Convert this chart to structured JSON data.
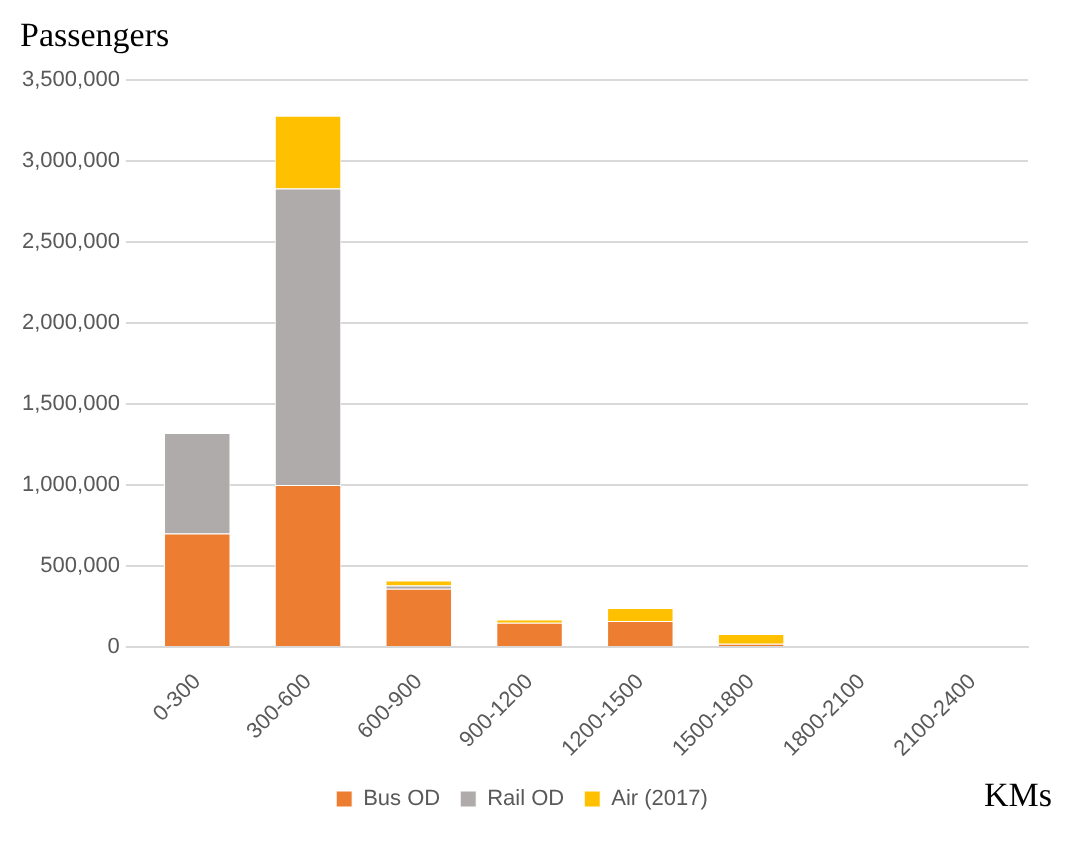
{
  "chart_data": {
    "type": "bar",
    "stacked": true,
    "ylabel": "Passengers",
    "xlabel": "KMs",
    "categories": [
      "0-300",
      "300-600",
      "600-900",
      "900-1200",
      "1200-1500",
      "1500-1800",
      "1800-2100",
      "2100-2400"
    ],
    "series": [
      {
        "name": "Bus OD",
        "color": "#ed7d31",
        "values": [
          700000,
          1000000,
          360000,
          150000,
          160000,
          20000,
          0,
          0
        ]
      },
      {
        "name": "Rail OD",
        "color": "#afabab",
        "values": [
          620000,
          1830000,
          20000,
          0,
          0,
          0,
          0,
          0
        ]
      },
      {
        "name": "Air (2017)",
        "color": "#ffc000",
        "values": [
          0,
          450000,
          30000,
          20000,
          80000,
          60000,
          0,
          0
        ]
      }
    ],
    "ylim": [
      0,
      3500000
    ],
    "yticks": [
      0,
      {
        "value": 500000,
        "label": "500,000"
      },
      {
        "value": 1000000,
        "label": "1,000,000"
      },
      {
        "value": 1500000,
        "label": "1,500,000"
      },
      {
        "value": 2000000,
        "label": "2,000,000"
      },
      {
        "value": 2500000,
        "label": "2,500,000"
      },
      {
        "value": 3000000,
        "label": "3,000,000"
      },
      {
        "value": 3500000,
        "label": "3,500,000"
      }
    ],
    "grid": "y",
    "legend": "bottom"
  }
}
